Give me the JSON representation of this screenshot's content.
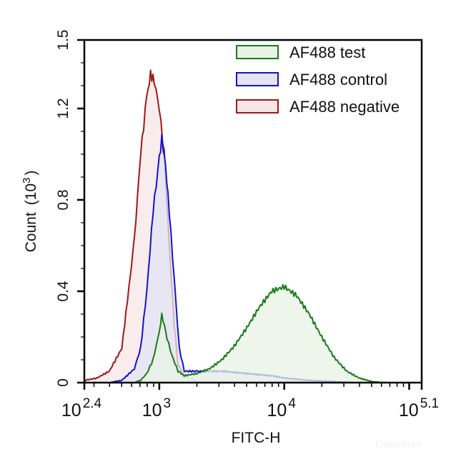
{
  "chart_data": {
    "type": "area",
    "xlabel": "FITC-H",
    "ylabel": "Count",
    "ylabel_unit_base": "10",
    "ylabel_unit_exp": "3",
    "x_scale": "log10",
    "xlim_log10": [
      2.4,
      5.1
    ],
    "ylim": [
      0,
      1.5
    ],
    "x_ticks": [
      {
        "base": "10",
        "exp": "2.4",
        "log10": 2.4
      },
      {
        "base": "10",
        "exp": "3",
        "log10": 3
      },
      {
        "base": "10",
        "exp": "4",
        "log10": 4
      },
      {
        "base": "10",
        "exp": "5.1",
        "log10": 5.1
      }
    ],
    "y_ticks": [
      "0",
      "0.4",
      "0.8",
      "1.2",
      "1.5"
    ],
    "y_tick_values": [
      0,
      0.4,
      0.8,
      1.2,
      1.5
    ],
    "grid": false,
    "legend_position": "top-right",
    "watermark": "Elabscience",
    "series": [
      {
        "name": "AF488 test",
        "stroke": "#1a7a1a",
        "fill": "#e8f3e6",
        "log10_x": [
          2.8,
          2.85,
          2.9,
          2.95,
          3.0,
          3.02,
          3.05,
          3.1,
          3.15,
          3.2,
          3.3,
          3.4,
          3.5,
          3.6,
          3.7,
          3.8,
          3.9,
          4.0,
          4.1,
          4.2,
          4.3,
          4.4,
          4.5,
          4.6,
          4.7,
          4.8
        ],
        "y": [
          0,
          0.01,
          0.04,
          0.1,
          0.22,
          0.3,
          0.22,
          0.12,
          0.05,
          0.03,
          0.04,
          0.06,
          0.1,
          0.16,
          0.24,
          0.33,
          0.4,
          0.42,
          0.38,
          0.3,
          0.2,
          0.11,
          0.05,
          0.02,
          0.005,
          0
        ]
      },
      {
        "name": "AF488 control",
        "stroke": "#1414c8",
        "fill": "#e4e4f6",
        "log10_x": [
          2.6,
          2.7,
          2.8,
          2.85,
          2.9,
          2.95,
          3.0,
          3.02,
          3.05,
          3.08,
          3.12,
          3.16,
          3.2,
          3.3,
          3.5,
          3.7,
          3.9,
          4.0,
          4.2,
          4.4,
          4.6
        ],
        "y": [
          0,
          0.01,
          0.06,
          0.15,
          0.4,
          0.75,
          0.98,
          1.07,
          0.95,
          0.75,
          0.45,
          0.15,
          0.05,
          0.05,
          0.05,
          0.04,
          0.03,
          0.02,
          0.01,
          0.005,
          0
        ]
      },
      {
        "name": "AF488 negative",
        "stroke": "#a01818",
        "fill": "#f6e6e6",
        "log10_x": [
          2.4,
          2.5,
          2.6,
          2.7,
          2.8,
          2.85,
          2.9,
          2.93,
          2.96,
          3.0,
          3.04,
          3.08,
          3.12,
          3.15,
          3.2,
          3.3,
          3.35
        ],
        "y": [
          0.01,
          0.02,
          0.05,
          0.15,
          0.62,
          1.0,
          1.25,
          1.35,
          1.32,
          1.2,
          1.0,
          0.6,
          0.25,
          0.08,
          0.03,
          0.005,
          0
        ]
      }
    ]
  }
}
